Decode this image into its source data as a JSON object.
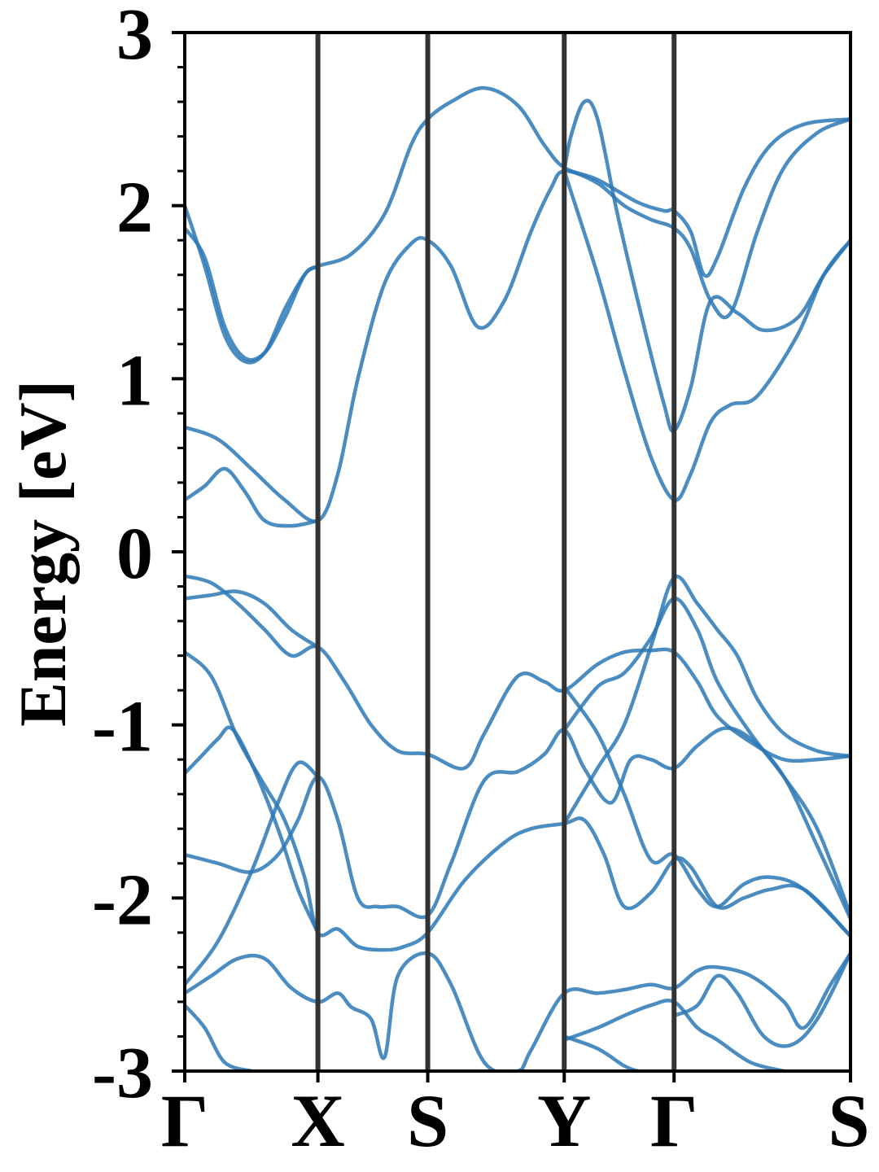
{
  "chart_data": {
    "type": "line",
    "title": "",
    "ylabel": "Energy [eV]",
    "xlabel": "",
    "ylim": [
      -3,
      3
    ],
    "y_ticks": [
      "3",
      "2",
      "1",
      "0",
      "-1",
      "-2",
      "-3"
    ],
    "y_tick_values": [
      3,
      2,
      1,
      0,
      -1,
      -2,
      -3
    ],
    "y_minor_step": 0.2,
    "k_points": [
      {
        "label": "Γ",
        "x": 0.0
      },
      {
        "label": "X",
        "x": 0.2
      },
      {
        "label": "S",
        "x": 0.365
      },
      {
        "label": "Y",
        "x": 0.57
      },
      {
        "label": "Γ",
        "x": 0.735
      },
      {
        "label": "S",
        "x": 1.0
      }
    ],
    "band_color": "#2b78b6",
    "divider_color": "#333333",
    "grid": false,
    "bands": [
      [
        [
          0.0,
          2.0
        ],
        [
          0.03,
          1.65
        ],
        [
          0.06,
          1.25
        ],
        [
          0.09,
          1.1
        ],
        [
          0.12,
          1.15
        ],
        [
          0.15,
          1.4
        ],
        [
          0.18,
          1.6
        ],
        [
          0.2,
          1.65
        ],
        [
          0.25,
          1.72
        ],
        [
          0.3,
          1.95
        ],
        [
          0.34,
          2.35
        ],
        [
          0.365,
          2.5
        ],
        [
          0.4,
          2.6
        ],
        [
          0.45,
          2.68
        ],
        [
          0.5,
          2.58
        ],
        [
          0.54,
          2.35
        ],
        [
          0.57,
          2.22
        ],
        [
          0.62,
          2.15
        ],
        [
          0.68,
          2.02
        ],
        [
          0.72,
          1.97
        ],
        [
          0.735,
          1.97
        ],
        [
          0.76,
          1.85
        ],
        [
          0.78,
          1.6
        ],
        [
          0.8,
          1.7
        ],
        [
          0.84,
          2.1
        ],
        [
          0.88,
          2.35
        ],
        [
          0.93,
          2.47
        ],
        [
          1.0,
          2.5
        ]
      ],
      [
        [
          0.0,
          1.87
        ],
        [
          0.03,
          1.7
        ],
        [
          0.06,
          1.3
        ],
        [
          0.09,
          1.12
        ],
        [
          0.12,
          1.15
        ],
        [
          0.15,
          1.35
        ],
        [
          0.18,
          1.6
        ],
        [
          0.2,
          1.65
        ]
      ],
      [
        [
          0.0,
          0.72
        ],
        [
          0.05,
          0.65
        ],
        [
          0.1,
          0.48
        ],
        [
          0.15,
          0.3
        ],
        [
          0.2,
          0.18
        ],
        [
          0.23,
          0.45
        ],
        [
          0.26,
          1.0
        ],
        [
          0.3,
          1.55
        ],
        [
          0.34,
          1.78
        ],
        [
          0.365,
          1.8
        ],
        [
          0.4,
          1.65
        ],
        [
          0.44,
          1.3
        ],
        [
          0.48,
          1.45
        ],
        [
          0.52,
          1.85
        ],
        [
          0.55,
          2.1
        ],
        [
          0.57,
          2.2
        ],
        [
          0.62,
          2.13
        ],
        [
          0.66,
          2.0
        ],
        [
          0.7,
          1.92
        ],
        [
          0.735,
          1.87
        ],
        [
          0.76,
          1.75
        ],
        [
          0.79,
          1.45
        ],
        [
          0.82,
          1.38
        ],
        [
          0.86,
          1.85
        ],
        [
          0.9,
          2.22
        ],
        [
          0.95,
          2.42
        ],
        [
          1.0,
          2.5
        ]
      ],
      [
        [
          0.0,
          0.3
        ],
        [
          0.03,
          0.38
        ],
        [
          0.06,
          0.48
        ],
        [
          0.09,
          0.35
        ],
        [
          0.12,
          0.18
        ],
        [
          0.16,
          0.15
        ],
        [
          0.2,
          0.18
        ]
      ],
      [
        [
          0.57,
          2.2
        ],
        [
          0.58,
          2.4
        ],
        [
          0.6,
          2.6
        ],
        [
          0.62,
          2.5
        ],
        [
          0.65,
          1.95
        ],
        [
          0.69,
          1.3
        ],
        [
          0.72,
          0.85
        ],
        [
          0.735,
          0.7
        ],
        [
          0.76,
          0.95
        ],
        [
          0.79,
          1.45
        ],
        [
          0.83,
          1.38
        ],
        [
          0.87,
          1.28
        ],
        [
          0.92,
          1.35
        ],
        [
          0.96,
          1.6
        ],
        [
          1.0,
          1.8
        ]
      ],
      [
        [
          0.57,
          2.2
        ],
        [
          0.62,
          1.6
        ],
        [
          0.66,
          1.05
        ],
        [
          0.7,
          0.55
        ],
        [
          0.735,
          0.3
        ],
        [
          0.76,
          0.45
        ],
        [
          0.79,
          0.75
        ],
        [
          0.82,
          0.85
        ],
        [
          0.86,
          0.9
        ],
        [
          0.92,
          1.25
        ],
        [
          0.96,
          1.6
        ],
        [
          1.0,
          1.8
        ]
      ],
      [
        [
          0.0,
          -0.14
        ],
        [
          0.04,
          -0.18
        ],
        [
          0.08,
          -0.3
        ],
        [
          0.12,
          -0.45
        ],
        [
          0.16,
          -0.6
        ],
        [
          0.2,
          -0.55
        ],
        [
          0.24,
          -0.75
        ],
        [
          0.28,
          -1.0
        ],
        [
          0.32,
          -1.15
        ],
        [
          0.365,
          -1.17
        ],
        [
          0.42,
          -1.25
        ],
        [
          0.45,
          -1.05
        ],
        [
          0.5,
          -0.72
        ],
        [
          0.54,
          -0.75
        ],
        [
          0.57,
          -0.8
        ],
        [
          0.62,
          -0.65
        ],
        [
          0.66,
          -0.58
        ],
        [
          0.7,
          -0.57
        ],
        [
          0.735,
          -0.58
        ],
        [
          0.77,
          -0.75
        ],
        [
          0.8,
          -0.95
        ],
        [
          0.85,
          -1.1
        ],
        [
          0.9,
          -1.2
        ],
        [
          0.95,
          -1.2
        ],
        [
          1.0,
          -1.18
        ]
      ],
      [
        [
          0.0,
          -0.27
        ],
        [
          0.04,
          -0.25
        ],
        [
          0.08,
          -0.23
        ],
        [
          0.12,
          -0.3
        ],
        [
          0.16,
          -0.45
        ],
        [
          0.2,
          -0.55
        ]
      ],
      [
        [
          0.0,
          -0.58
        ],
        [
          0.04,
          -0.72
        ],
        [
          0.08,
          -1.08
        ],
        [
          0.12,
          -1.35
        ],
        [
          0.15,
          -1.55
        ],
        [
          0.18,
          -1.88
        ],
        [
          0.2,
          -2.2
        ],
        [
          0.23,
          -2.18
        ],
        [
          0.26,
          -2.28
        ],
        [
          0.3,
          -2.3
        ],
        [
          0.33,
          -2.28
        ],
        [
          0.365,
          -2.2
        ],
        [
          0.42,
          -1.9
        ],
        [
          0.48,
          -1.68
        ],
        [
          0.52,
          -1.6
        ],
        [
          0.57,
          -1.57
        ],
        [
          0.6,
          -1.55
        ],
        [
          0.63,
          -1.75
        ],
        [
          0.66,
          -2.05
        ],
        [
          0.7,
          -1.97
        ],
        [
          0.735,
          -1.78
        ],
        [
          0.76,
          -1.82
        ],
        [
          0.8,
          -2.05
        ],
        [
          0.84,
          -2.0
        ],
        [
          0.88,
          -1.95
        ],
        [
          0.93,
          -1.95
        ],
        [
          1.0,
          -2.22
        ]
      ],
      [
        [
          0.0,
          -1.28
        ],
        [
          0.02,
          -1.2
        ],
        [
          0.05,
          -1.08
        ],
        [
          0.07,
          -1.02
        ],
        [
          0.1,
          -1.22
        ],
        [
          0.14,
          -1.6
        ],
        [
          0.17,
          -1.95
        ],
        [
          0.2,
          -2.2
        ]
      ],
      [
        [
          0.0,
          -1.75
        ],
        [
          0.05,
          -1.8
        ],
        [
          0.1,
          -1.85
        ],
        [
          0.14,
          -1.75
        ],
        [
          0.17,
          -1.55
        ],
        [
          0.2,
          -1.3
        ],
        [
          0.23,
          -1.55
        ],
        [
          0.26,
          -2.0
        ],
        [
          0.29,
          -2.05
        ],
        [
          0.32,
          -2.05
        ],
        [
          0.365,
          -2.1
        ],
        [
          0.4,
          -1.8
        ],
        [
          0.45,
          -1.32
        ],
        [
          0.5,
          -1.27
        ],
        [
          0.54,
          -1.17
        ],
        [
          0.57,
          -1.03
        ],
        [
          0.6,
          -1.25
        ],
        [
          0.64,
          -1.45
        ],
        [
          0.67,
          -1.2
        ],
        [
          0.7,
          -1.2
        ],
        [
          0.735,
          -1.25
        ],
        [
          0.77,
          -1.12
        ],
        [
          0.81,
          -1.02
        ],
        [
          0.85,
          -1.08
        ],
        [
          0.9,
          -1.3
        ],
        [
          0.95,
          -1.7
        ],
        [
          1.0,
          -2.12
        ]
      ],
      [
        [
          0.0,
          -2.5
        ],
        [
          0.05,
          -2.25
        ],
        [
          0.1,
          -1.85
        ],
        [
          0.14,
          -1.45
        ],
        [
          0.17,
          -1.22
        ],
        [
          0.2,
          -1.3
        ]
      ],
      [
        [
          0.57,
          -1.03
        ],
        [
          0.62,
          -0.78
        ],
        [
          0.66,
          -0.7
        ],
        [
          0.7,
          -0.5
        ],
        [
          0.735,
          -0.27
        ],
        [
          0.77,
          -0.45
        ],
        [
          0.8,
          -0.75
        ],
        [
          0.85,
          -1.05
        ],
        [
          0.9,
          -1.3
        ],
        [
          0.95,
          -1.6
        ],
        [
          1.0,
          -2.1
        ]
      ],
      [
        [
          0.57,
          -0.78
        ],
        [
          0.62,
          -1.05
        ],
        [
          0.66,
          -1.4
        ],
        [
          0.7,
          -1.78
        ],
        [
          0.735,
          -1.75
        ],
        [
          0.77,
          -1.95
        ],
        [
          0.8,
          -2.05
        ],
        [
          0.84,
          -1.92
        ],
        [
          0.88,
          -1.88
        ],
        [
          0.93,
          -1.95
        ],
        [
          1.0,
          -2.22
        ]
      ],
      [
        [
          0.57,
          -1.57
        ],
        [
          0.62,
          -1.25
        ],
        [
          0.66,
          -1.0
        ],
        [
          0.7,
          -0.55
        ],
        [
          0.735,
          -0.15
        ],
        [
          0.77,
          -0.3
        ],
        [
          0.8,
          -0.45
        ],
        [
          0.83,
          -0.6
        ],
        [
          0.86,
          -0.85
        ],
        [
          0.9,
          -1.05
        ],
        [
          0.95,
          -1.15
        ],
        [
          1.0,
          -1.18
        ]
      ],
      [
        [
          0.0,
          -2.55
        ],
        [
          0.04,
          -2.45
        ],
        [
          0.08,
          -2.35
        ],
        [
          0.12,
          -2.35
        ],
        [
          0.16,
          -2.52
        ],
        [
          0.2,
          -2.6
        ],
        [
          0.23,
          -2.55
        ],
        [
          0.25,
          -2.63
        ],
        [
          0.28,
          -2.7
        ],
        [
          0.3,
          -2.92
        ],
        [
          0.32,
          -2.45
        ],
        [
          0.365,
          -2.32
        ],
        [
          0.4,
          -2.5
        ],
        [
          0.45,
          -2.95
        ],
        [
          0.5,
          -3.0
        ],
        [
          0.52,
          -2.88
        ],
        [
          0.57,
          -2.55
        ],
        [
          0.62,
          -2.55
        ],
        [
          0.66,
          -2.53
        ],
        [
          0.7,
          -2.5
        ],
        [
          0.735,
          -2.52
        ],
        [
          0.77,
          -2.42
        ],
        [
          0.8,
          -2.4
        ],
        [
          0.85,
          -2.45
        ],
        [
          0.9,
          -2.6
        ],
        [
          0.93,
          -2.75
        ],
        [
          0.97,
          -2.5
        ],
        [
          1.0,
          -2.32
        ]
      ],
      [
        [
          0.0,
          -2.62
        ],
        [
          0.03,
          -2.75
        ],
        [
          0.06,
          -2.95
        ],
        [
          0.1,
          -3.0
        ]
      ],
      [
        [
          0.57,
          -2.82
        ],
        [
          0.62,
          -2.75
        ],
        [
          0.66,
          -2.68
        ],
        [
          0.7,
          -2.62
        ],
        [
          0.735,
          -2.6
        ],
        [
          0.77,
          -2.75
        ],
        [
          0.8,
          -2.82
        ],
        [
          0.85,
          -2.95
        ],
        [
          0.9,
          -3.0
        ]
      ],
      [
        [
          0.57,
          -2.8
        ],
        [
          0.62,
          -2.87
        ],
        [
          0.66,
          -2.97
        ],
        [
          0.68,
          -3.0
        ]
      ],
      [
        [
          0.735,
          -2.68
        ],
        [
          0.77,
          -2.62
        ],
        [
          0.8,
          -2.45
        ],
        [
          0.83,
          -2.55
        ],
        [
          0.87,
          -2.8
        ],
        [
          0.91,
          -2.85
        ],
        [
          0.95,
          -2.7
        ],
        [
          1.0,
          -2.32
        ]
      ]
    ]
  }
}
